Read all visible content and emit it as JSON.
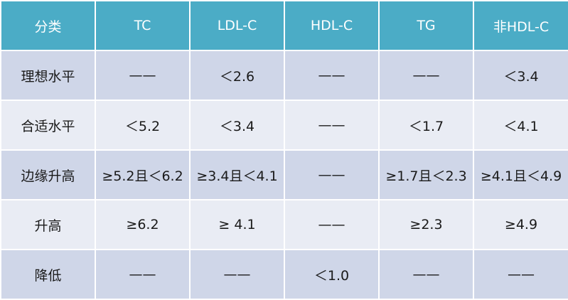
{
  "table": {
    "headers": [
      "分类",
      "TC",
      "LDL-C",
      "HDL-C",
      "TG",
      "非HDL-C"
    ],
    "rows": [
      [
        "理想水平",
        "——",
        "＜2.6",
        "——",
        "——",
        "＜3.4"
      ],
      [
        "合适水平",
        "＜5.2",
        "＜3.4",
        "——",
        "＜1.7",
        "＜4.1"
      ],
      [
        "边缘升高",
        "≥5.2且＜6.2",
        "≥3.4且＜4.1",
        "——",
        "≥1.7且＜2.3",
        "≥4.1且＜4.9"
      ],
      [
        "升高",
        "≥6.2",
        "≥ 4.1",
        "——",
        "≥2.3",
        "≥4.9"
      ],
      [
        "降低",
        "——",
        "——",
        "＜1.0",
        "——",
        "——"
      ]
    ]
  },
  "colors": {
    "header_bg": "#4bacc6",
    "row_odd_bg": "#cfd6e8",
    "row_even_bg": "#e9ecf4"
  }
}
